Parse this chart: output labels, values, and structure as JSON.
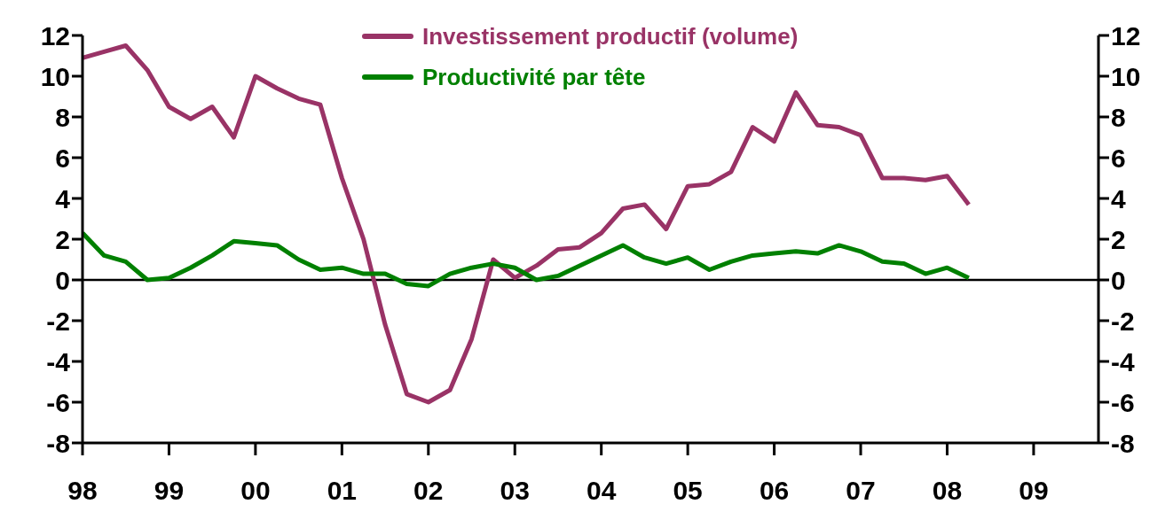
{
  "chart_data": {
    "type": "line",
    "x": [
      1998,
      1998.25,
      1998.5,
      1998.75,
      1999,
      1999.25,
      1999.5,
      1999.75,
      2000,
      2000.25,
      2000.5,
      2000.75,
      2001,
      2001.25,
      2001.5,
      2001.75,
      2002,
      2002.25,
      2002.5,
      2002.75,
      2003,
      2003.25,
      2003.5,
      2003.75,
      2004,
      2004.25,
      2004.5,
      2004.75,
      2005,
      2005.25,
      2005.5,
      2005.75,
      2006,
      2006.25,
      2006.5,
      2006.75,
      2007,
      2007.25,
      2007.5,
      2007.75,
      2008,
      2008.25
    ],
    "series": [
      {
        "name": "Investissement productif (volume)",
        "color": "#993366",
        "values": [
          10.9,
          11.2,
          11.5,
          10.3,
          8.5,
          7.9,
          8.5,
          7.0,
          10.0,
          9.4,
          8.9,
          8.6,
          5.0,
          2.0,
          -2.2,
          -5.6,
          -6.0,
          -5.4,
          -2.9,
          1.0,
          0.1,
          0.7,
          1.5,
          1.6,
          2.3,
          3.5,
          3.7,
          2.5,
          4.6,
          4.7,
          5.3,
          7.5,
          6.8,
          9.2,
          7.6,
          7.5,
          7.1,
          5.0,
          5.0,
          4.9,
          5.1,
          3.7
        ]
      },
      {
        "name": "Productivité par tête",
        "color": "#008000",
        "values": [
          2.3,
          1.2,
          0.9,
          0.0,
          0.1,
          0.6,
          1.2,
          1.9,
          1.8,
          1.7,
          1.0,
          0.5,
          0.6,
          0.3,
          0.3,
          -0.2,
          -0.3,
          0.3,
          0.6,
          0.8,
          0.6,
          0.0,
          0.2,
          0.7,
          1.2,
          1.7,
          1.1,
          0.8,
          1.1,
          0.5,
          0.9,
          1.2,
          1.3,
          1.4,
          1.3,
          1.7,
          1.4,
          0.9,
          0.8,
          0.3,
          0.6,
          0.1
        ]
      }
    ],
    "xlim": [
      1998,
      2009.75
    ],
    "xticks": [
      {
        "value": 1998,
        "label": "98"
      },
      {
        "value": 1999,
        "label": "99"
      },
      {
        "value": 2000,
        "label": "00"
      },
      {
        "value": 2001,
        "label": "01"
      },
      {
        "value": 2002,
        "label": "02"
      },
      {
        "value": 2003,
        "label": "03"
      },
      {
        "value": 2004,
        "label": "04"
      },
      {
        "value": 2005,
        "label": "05"
      },
      {
        "value": 2006,
        "label": "06"
      },
      {
        "value": 2007,
        "label": "07"
      },
      {
        "value": 2008,
        "label": "08"
      },
      {
        "value": 2009,
        "label": "09"
      }
    ],
    "ylim": [
      -8,
      12
    ],
    "yticks": [
      -8,
      -6,
      -4,
      -2,
      0,
      2,
      4,
      6,
      8,
      10,
      12
    ],
    "y2lim": [
      -8,
      12
    ],
    "y2ticks": [
      -8,
      -6,
      -4,
      -2,
      0,
      2,
      4,
      6,
      8,
      10,
      12
    ],
    "ref_lines": [
      {
        "axis": "y",
        "value": 0,
        "color": "#000000"
      }
    ],
    "grid": false,
    "legend": "top",
    "marker": "none",
    "line_style": "solid"
  }
}
